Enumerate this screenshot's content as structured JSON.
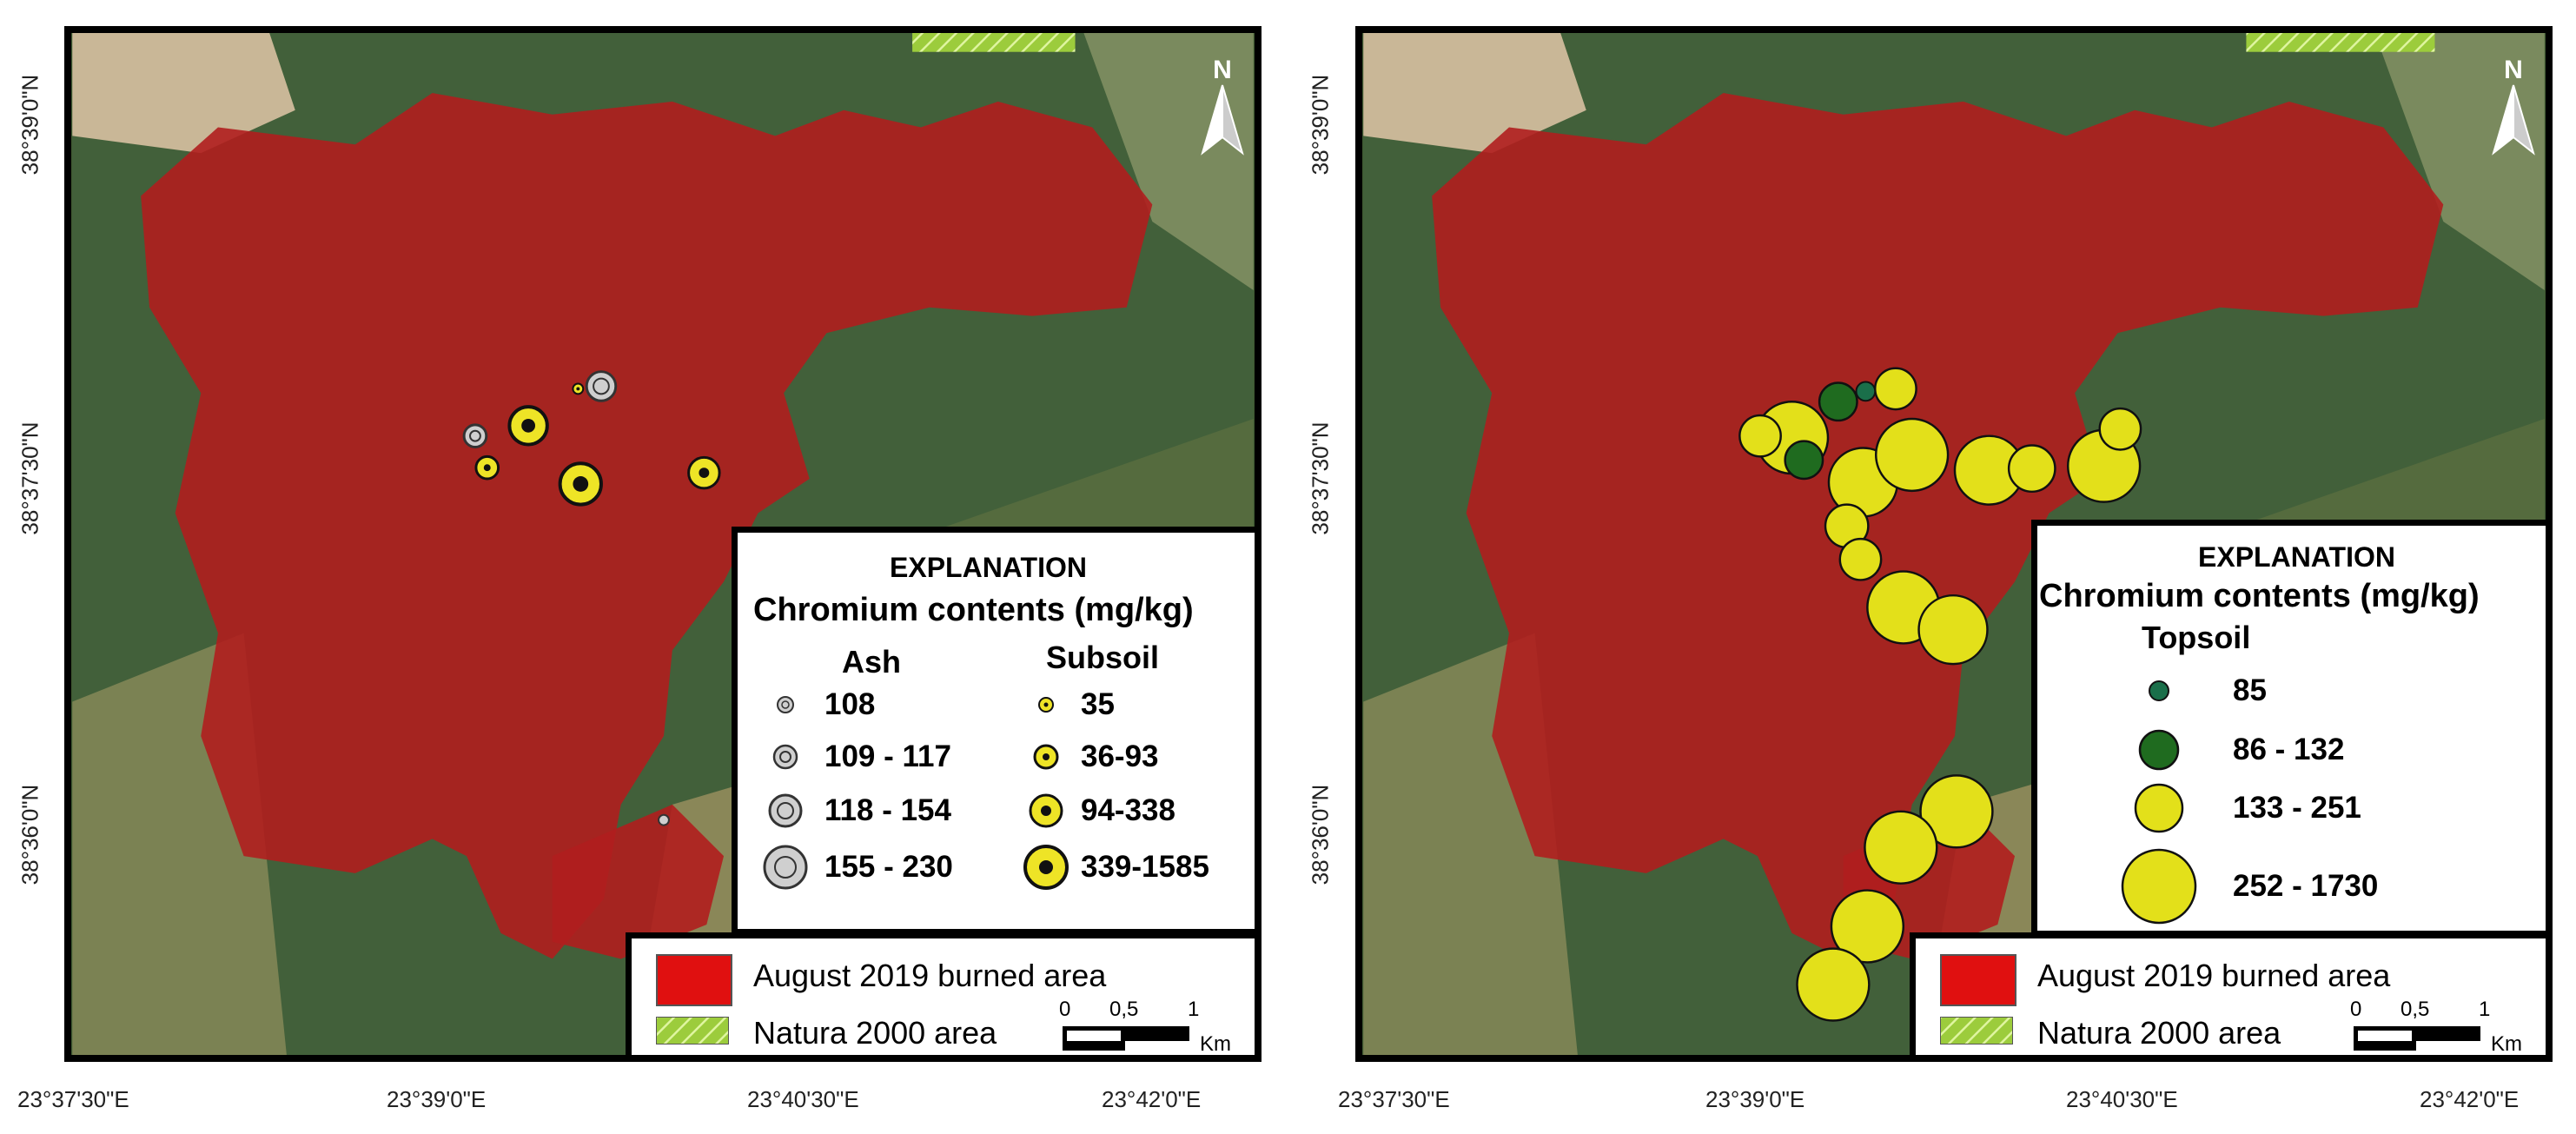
{
  "axes": {
    "x_ticks": [
      "23°37'30\"E",
      "23°39'0\"E",
      "23°40'30\"E",
      "23°42'0\"E"
    ],
    "y_ticks": [
      "38°39'0\"N",
      "38°37'30\"N",
      "38°36'0\"N"
    ]
  },
  "north_label": "N",
  "left_panel": {
    "explanation_title": "EXPLANATION",
    "explanation_subtitle": "Chromium contents (mg/kg)",
    "ash_header": "Ash",
    "subsoil_header": "Subsoil",
    "ash_classes": [
      "108",
      "109 - 117",
      "118 - 154",
      "155 - 230"
    ],
    "subsoil_classes": [
      "35",
      "36-93",
      "94-338",
      "339-1585"
    ]
  },
  "right_panel": {
    "explanation_title": "EXPLANATION",
    "explanation_subtitle": "Chromium contents  (mg/kg)",
    "topsoil_header": "Topsoil",
    "topsoil_classes": [
      "85",
      "86 - 132",
      "133 - 251",
      "252 - 1730"
    ]
  },
  "base_legend": {
    "burned": "August 2019 burned area",
    "natura": "Natura 2000 area",
    "scale_ticks": [
      "0",
      "0,5",
      "1"
    ],
    "scale_unit": "Km"
  },
  "colors": {
    "burned_area": "#b01e1e",
    "burned_legend": "#e01010",
    "natura_hatch": "#9ccc3c",
    "ash_symbol": "#cfcfcf",
    "subsoil_symbol": "#eee426",
    "topsoil_dark_green": "#1f6b1f",
    "topsoil_teal": "#1a6f4a",
    "topsoil_yellow": "#e3e01a"
  }
}
